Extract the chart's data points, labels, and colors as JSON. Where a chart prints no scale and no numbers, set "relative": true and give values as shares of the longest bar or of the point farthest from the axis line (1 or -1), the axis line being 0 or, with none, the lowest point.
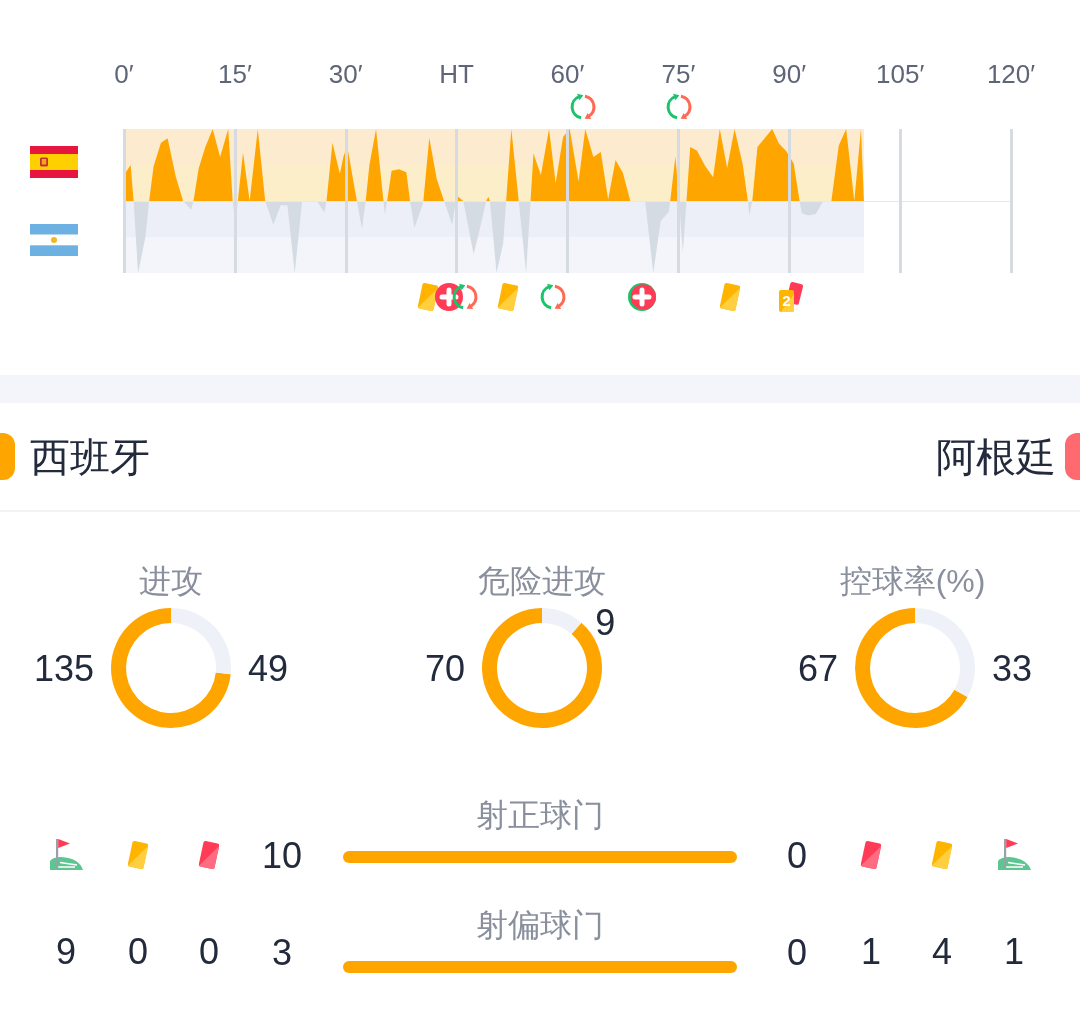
{
  "chart_data": [
    {
      "type": "area",
      "relative": true,
      "xlim": [
        0,
        120
      ],
      "xticks": [
        {
          "value": 0,
          "label": "0′"
        },
        {
          "value": 15,
          "label": "15′"
        },
        {
          "value": 30,
          "label": "30′"
        },
        {
          "value": 45,
          "label": "HT"
        },
        {
          "value": 60,
          "label": "60′"
        },
        {
          "value": 75,
          "label": "75′"
        },
        {
          "value": 90,
          "label": "90′"
        },
        {
          "value": 105,
          "label": "105′"
        },
        {
          "value": 120,
          "label": "120′"
        }
      ],
      "grid": "x",
      "x": [
        0,
        0.9,
        1.3,
        1.9,
        2.9,
        3.4,
        4.0,
        5.0,
        5.9,
        7.0,
        8.0,
        9.1,
        9.4,
        10.1,
        11.0,
        12.0,
        13.0,
        14.1,
        14.7,
        15.1,
        15.4,
        16.1,
        17.0,
        18.1,
        19.1,
        20.2,
        21.2,
        22.1,
        23.1,
        24.1,
        26.1,
        27.1,
        27.4,
        28.2,
        29.2,
        29.7,
        30.2,
        31.5,
        32.2,
        32.7,
        33.2,
        34.1,
        35.1,
        35.3,
        35.6,
        36.2,
        37.2,
        38.2,
        38.7,
        39.3,
        40.3,
        40.5,
        41.3,
        42.3,
        43.3,
        44.4,
        44.9,
        45.2,
        45.9,
        47.3,
        48.2,
        49.0,
        49.3,
        49.5,
        50.4,
        51.3,
        51.7,
        52.4,
        53.4,
        54.4,
        55.0,
        55.4,
        56.4,
        57.5,
        58.4,
        59.4,
        60.3,
        61.5,
        62.4,
        63.5,
        64.5,
        65.5,
        66.5,
        67.5,
        68.5,
        70.5,
        71.6,
        72.6,
        73.7,
        73.9,
        74.6,
        75.1,
        75.6,
        76.1,
        76.6,
        77.5,
        78.6,
        79.7,
        80.6,
        81.6,
        82.6,
        83.7,
        84.4,
        84.6,
        85.0,
        85.7,
        87.7,
        88.6,
        89.6,
        90.6,
        91.4,
        91.7,
        92.6,
        93.6,
        94.6,
        95.7,
        96.7,
        97.7,
        98.8,
        99.7,
        100.1
      ],
      "series": [
        {
          "color": "#ffa500",
          "values": [
            0.36,
            0.5,
            0,
            0,
            0,
            0,
            0.48,
            0.81,
            0.87,
            0.34,
            0,
            0,
            0,
            0.45,
            0.75,
            1,
            0.61,
            1,
            0,
            0,
            0,
            0.67,
            0,
            1,
            0,
            0,
            0,
            0,
            0,
            0,
            0,
            0,
            0,
            0.81,
            0.38,
            0.62,
            0.76,
            0,
            0,
            0,
            0.5,
            1,
            0,
            0,
            0,
            0.42,
            0.44,
            0.4,
            0,
            0,
            0,
            0,
            0.88,
            0.31,
            0,
            0,
            0,
            0.06,
            0,
            0,
            0,
            0,
            0.06,
            0,
            0,
            0,
            0,
            1,
            0,
            0,
            0,
            0.66,
            0.36,
            1,
            0.25,
            0.89,
            1,
            0.27,
            1,
            0.61,
            0.68,
            0.02,
            0.57,
            0.39,
            0,
            0,
            0,
            0,
            0,
            0,
            0.62,
            0,
            0,
            0,
            0.75,
            0.7,
            0.49,
            0.33,
            1,
            0.46,
            1,
            0.51,
            0,
            0,
            0,
            0.75,
            1,
            0.8,
            0.69,
            0.52,
            0,
            0,
            0,
            0,
            0,
            0,
            0.77,
            1,
            0,
            1,
            0
          ]
        },
        {
          "color": "#d5dbe3",
          "values": [
            0,
            0,
            0,
            -1,
            -0.5,
            0,
            0,
            0,
            0,
            0,
            0,
            -0.12,
            0,
            0,
            0,
            0,
            0,
            0,
            0,
            -0.31,
            0,
            0,
            0,
            0,
            0,
            -0.33,
            -0.06,
            -0.06,
            -1,
            0,
            0,
            -0.16,
            0,
            0,
            0,
            0,
            0,
            0,
            -0.39,
            0,
            0,
            0,
            0,
            -0.19,
            0,
            0,
            0,
            0,
            0,
            -0.37,
            -0.08,
            0,
            0,
            0,
            0,
            -0.33,
            0,
            0,
            0,
            -0.74,
            -0.36,
            0,
            0,
            0,
            -1,
            -0.59,
            0,
            0,
            0,
            -1,
            0,
            0,
            0,
            0,
            0,
            0,
            0,
            0,
            0,
            0,
            0,
            0,
            0,
            0,
            0,
            0,
            -1,
            -0.28,
            -0.15,
            0,
            0,
            0,
            -0.72,
            0,
            0,
            0,
            0,
            0,
            0,
            0,
            0,
            0,
            0,
            -0.2,
            0,
            0,
            0,
            0,
            0,
            0,
            0,
            -0.17,
            -0.2,
            -0.18,
            0,
            0,
            0,
            0,
            0,
            0,
            0
          ]
        }
      ],
      "bands": [
        {
          "axis": "y",
          "from": 0.5,
          "to": 1,
          "color": "#fdebd0"
        },
        {
          "axis": "y",
          "from": 0,
          "to": 0.5,
          "color": "#fbeec9"
        },
        {
          "axis": "y",
          "from": -0.5,
          "to": 0,
          "color": "#eceff7"
        },
        {
          "axis": "y",
          "from": -1,
          "to": -0.5,
          "color": "#f3f5fa"
        }
      ],
      "annotations": [
        "2"
      ]
    },
    {
      "type": "other",
      "annotations": [
        "西班牙",
        "阿根廷"
      ]
    },
    {
      "type": "donut",
      "title": "进攻",
      "categories": [
        null,
        null
      ],
      "values": [
        135,
        49
      ],
      "colors": [
        "#ffa500",
        "#eef2f8"
      ],
      "data_labels": true
    },
    {
      "type": "donut",
      "title": "危险进攻",
      "categories": [
        null,
        null
      ],
      "values": [
        70,
        9
      ],
      "colors": [
        "#ffa500",
        "#eef2f8"
      ],
      "data_labels": true
    },
    {
      "type": "donut",
      "title": "控球率(%)",
      "categories": [
        null,
        null
      ],
      "values": [
        67,
        33
      ],
      "colors": [
        "#ffa500",
        "#eef2f8"
      ],
      "data_labels": true
    },
    {
      "type": "bar",
      "orientation": "horizontal",
      "categories": [
        "射正球门"
      ],
      "series": [
        {
          "color": "#ffa500",
          "values": [
            10
          ]
        }
      ],
      "data_labels": true,
      "annotations": [
        "0"
      ]
    },
    {
      "type": "bar",
      "orientation": "horizontal",
      "categories": [
        "射偏球门"
      ],
      "series": [
        {
          "color": "#ffa500",
          "values": [
            3
          ]
        }
      ],
      "data_labels": true,
      "annotations": [
        "0"
      ]
    },
    {
      "type": "other",
      "annotations": [
        "9",
        "0",
        "0",
        "1",
        "4",
        "1"
      ]
    }
  ]
}
